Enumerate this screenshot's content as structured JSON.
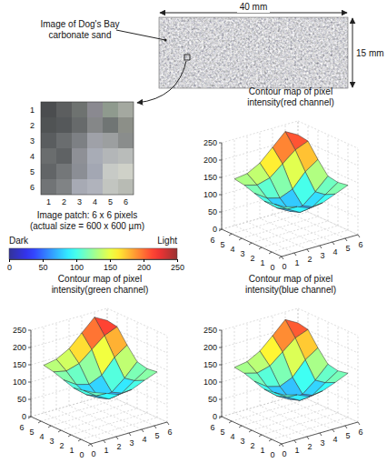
{
  "photo": {
    "label": [
      "Image of Dog's Bay",
      "carbonate sand"
    ],
    "width_label": "40 mm",
    "height_label": "15 mm"
  },
  "patch": {
    "row_labels": [
      1,
      2,
      3,
      4,
      5,
      6
    ],
    "col_labels": [
      1,
      2,
      3,
      4,
      5,
      6
    ],
    "cells": [
      [
        "#4b4d4f",
        "#5c5e5f",
        "#6e7270",
        "#8a8990",
        "#8f9a8e",
        "#a4a8a0"
      ],
      [
        "#505354",
        "#55585a",
        "#676a6b",
        "#858788",
        "#707574",
        "#8c8f88"
      ],
      [
        "#5a5d5f",
        "#6a6d6f",
        "#7d8084",
        "#9fa1a8",
        "#9c9fa0",
        "#8a8d8c"
      ],
      [
        "#6a6d6e",
        "#5f6264",
        "#8e9096",
        "#a8acb6",
        "#b3b6b8",
        "#b9bcba"
      ],
      [
        "#626567",
        "#747779",
        "#8b8e95",
        "#a3a7b3",
        "#c7cac6",
        "#cfd1c8"
      ],
      [
        "#717476",
        "#808385",
        "#a7aab4",
        "#b0b3bc",
        "#c2c5c0",
        "#b8bbb4"
      ]
    ],
    "caption": [
      "Image patch: 6 x 6 pixels",
      "(actual size = 600 x 600 µm)"
    ]
  },
  "colorbar": {
    "low_label": "Dark",
    "high_label": "Light",
    "range": [
      0,
      250
    ],
    "ticks": [
      0,
      50,
      100,
      150,
      200,
      250
    ]
  },
  "chart_data": [
    {
      "type": "surface",
      "title": [
        "Contour map of pixel",
        "intensity(red channel)"
      ],
      "x": [
        1,
        2,
        3,
        4,
        5,
        6
      ],
      "y": [
        1,
        2,
        3,
        4,
        5,
        6
      ],
      "z": [
        [
          120,
          110,
          95,
          100,
          115,
          130
        ],
        [
          115,
          90,
          70,
          75,
          100,
          125
        ],
        [
          110,
          80,
          60,
          65,
          95,
          130
        ],
        [
          120,
          95,
          85,
          100,
          140,
          165
        ],
        [
          130,
          120,
          130,
          160,
          190,
          205
        ],
        [
          135,
          140,
          160,
          195,
          230,
          210
        ]
      ],
      "xlim": [
        0,
        6
      ],
      "ylim": [
        0,
        6
      ],
      "zlim": [
        0,
        250
      ],
      "xticks": [
        0,
        1,
        2,
        3,
        4,
        5,
        6
      ],
      "yticks": [
        0,
        1,
        2,
        3,
        4,
        5,
        6
      ],
      "zticks": [
        0,
        50,
        100,
        150,
        200,
        250
      ],
      "grid": true
    },
    {
      "type": "surface",
      "title": [
        "Contour map of pixel",
        "intensity(green channel)"
      ],
      "x": [
        1,
        2,
        3,
        4,
        5,
        6
      ],
      "y": [
        1,
        2,
        3,
        4,
        5,
        6
      ],
      "z": [
        [
          125,
          112,
          98,
          102,
          118,
          132
        ],
        [
          118,
          92,
          72,
          78,
          104,
          128
        ],
        [
          112,
          82,
          62,
          68,
          98,
          135
        ],
        [
          122,
          98,
          88,
          104,
          145,
          170
        ],
        [
          132,
          124,
          135,
          165,
          195,
          210
        ],
        [
          138,
          145,
          165,
          200,
          235,
          215
        ]
      ],
      "xlim": [
        0,
        6
      ],
      "ylim": [
        0,
        6
      ],
      "zlim": [
        0,
        250
      ],
      "xticks": [
        0,
        1,
        2,
        3,
        4,
        5,
        6
      ],
      "yticks": [
        0,
        1,
        2,
        3,
        4,
        5,
        6
      ],
      "zticks": [
        0,
        50,
        100,
        150,
        200,
        250
      ],
      "grid": true
    },
    {
      "type": "surface",
      "title": [
        "Contour map of pixel",
        "intensity(blue channel)"
      ],
      "x": [
        1,
        2,
        3,
        4,
        5,
        6
      ],
      "y": [
        1,
        2,
        3,
        4,
        5,
        6
      ],
      "z": [
        [
          118,
          108,
          92,
          98,
          112,
          128
        ],
        [
          112,
          88,
          68,
          72,
          98,
          122
        ],
        [
          108,
          78,
          58,
          62,
          92,
          128
        ],
        [
          118,
          92,
          82,
          98,
          138,
          162
        ],
        [
          128,
          118,
          128,
          158,
          188,
          202
        ],
        [
          132,
          138,
          158,
          192,
          228,
          208
        ]
      ],
      "xlim": [
        0,
        6
      ],
      "ylim": [
        0,
        6
      ],
      "zlim": [
        0,
        250
      ],
      "xticks": [
        0,
        1,
        2,
        3,
        4,
        5,
        6
      ],
      "yticks": [
        0,
        1,
        2,
        3,
        4,
        5,
        6
      ],
      "zticks": [
        0,
        50,
        100,
        150,
        200,
        250
      ],
      "grid": true
    }
  ]
}
